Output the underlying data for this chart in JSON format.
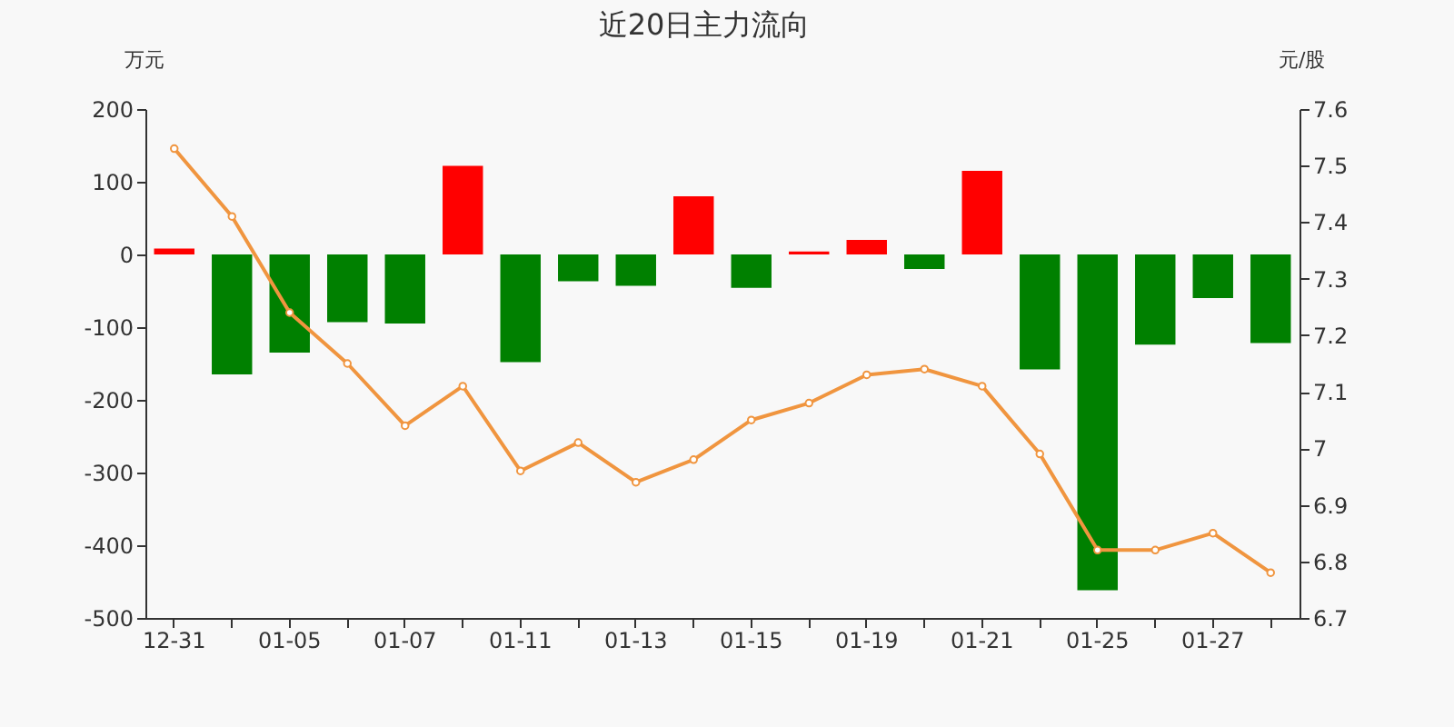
{
  "chart_data": {
    "type": "bar",
    "title": "近20日主力流向",
    "ylabel": "万元",
    "y2label": "元/股",
    "categories": [
      "12-31",
      null,
      "01-05",
      null,
      "01-07",
      null,
      "01-11",
      null,
      "01-13",
      null,
      "01-15",
      null,
      "01-19",
      null,
      "01-21",
      null,
      "01-25",
      null,
      "01-27",
      null
    ],
    "ylim": [
      -500,
      200
    ],
    "yticks": [
      -500,
      -400,
      -300,
      -200,
      -100,
      0,
      100,
      200
    ],
    "y2lim": [
      6.7,
      7.6
    ],
    "y2ticks": [
      {
        "value": 6.7,
        "label": "6.7"
      },
      {
        "value": 6.8,
        "label": "6.8"
      },
      {
        "value": 6.9,
        "label": "6.9"
      },
      {
        "value": 7.0,
        "label": "7"
      },
      {
        "value": 7.1,
        "label": "7.1"
      },
      {
        "value": 7.2,
        "label": "7.2"
      },
      {
        "value": 7.3,
        "label": "7.3"
      },
      {
        "value": 7.4,
        "label": "7.4"
      },
      {
        "value": 7.5,
        "label": "7.5"
      },
      {
        "value": 7.6,
        "label": "7.6"
      }
    ],
    "grid": false,
    "series": [
      {
        "values": [
          8,
          -165,
          -135,
          -93,
          -95,
          122,
          -148,
          -37,
          -43,
          80,
          -46,
          4,
          20,
          -20,
          115,
          -158,
          -462,
          -124,
          -60,
          -122
        ],
        "colors": [
          "#ff0000",
          "#008000",
          "#008000",
          "#008000",
          "#008000",
          "#ff0000",
          "#008000",
          "#008000",
          "#008000",
          "#ff0000",
          "#008000",
          "#ff0000",
          "#ff0000",
          "#008000",
          "#ff0000",
          "#008000",
          "#008000",
          "#008000",
          "#008000",
          "#008000"
        ]
      },
      {
        "type": "line",
        "axis": "y2",
        "color": "#f0953f",
        "marker": "circle",
        "line_style": "solid",
        "values": [
          7.53,
          7.41,
          7.24,
          7.15,
          7.04,
          7.11,
          6.96,
          7.01,
          6.94,
          6.98,
          7.05,
          7.08,
          7.13,
          7.14,
          7.11,
          6.99,
          6.82,
          6.82,
          6.85,
          6.78
        ]
      }
    ]
  }
}
